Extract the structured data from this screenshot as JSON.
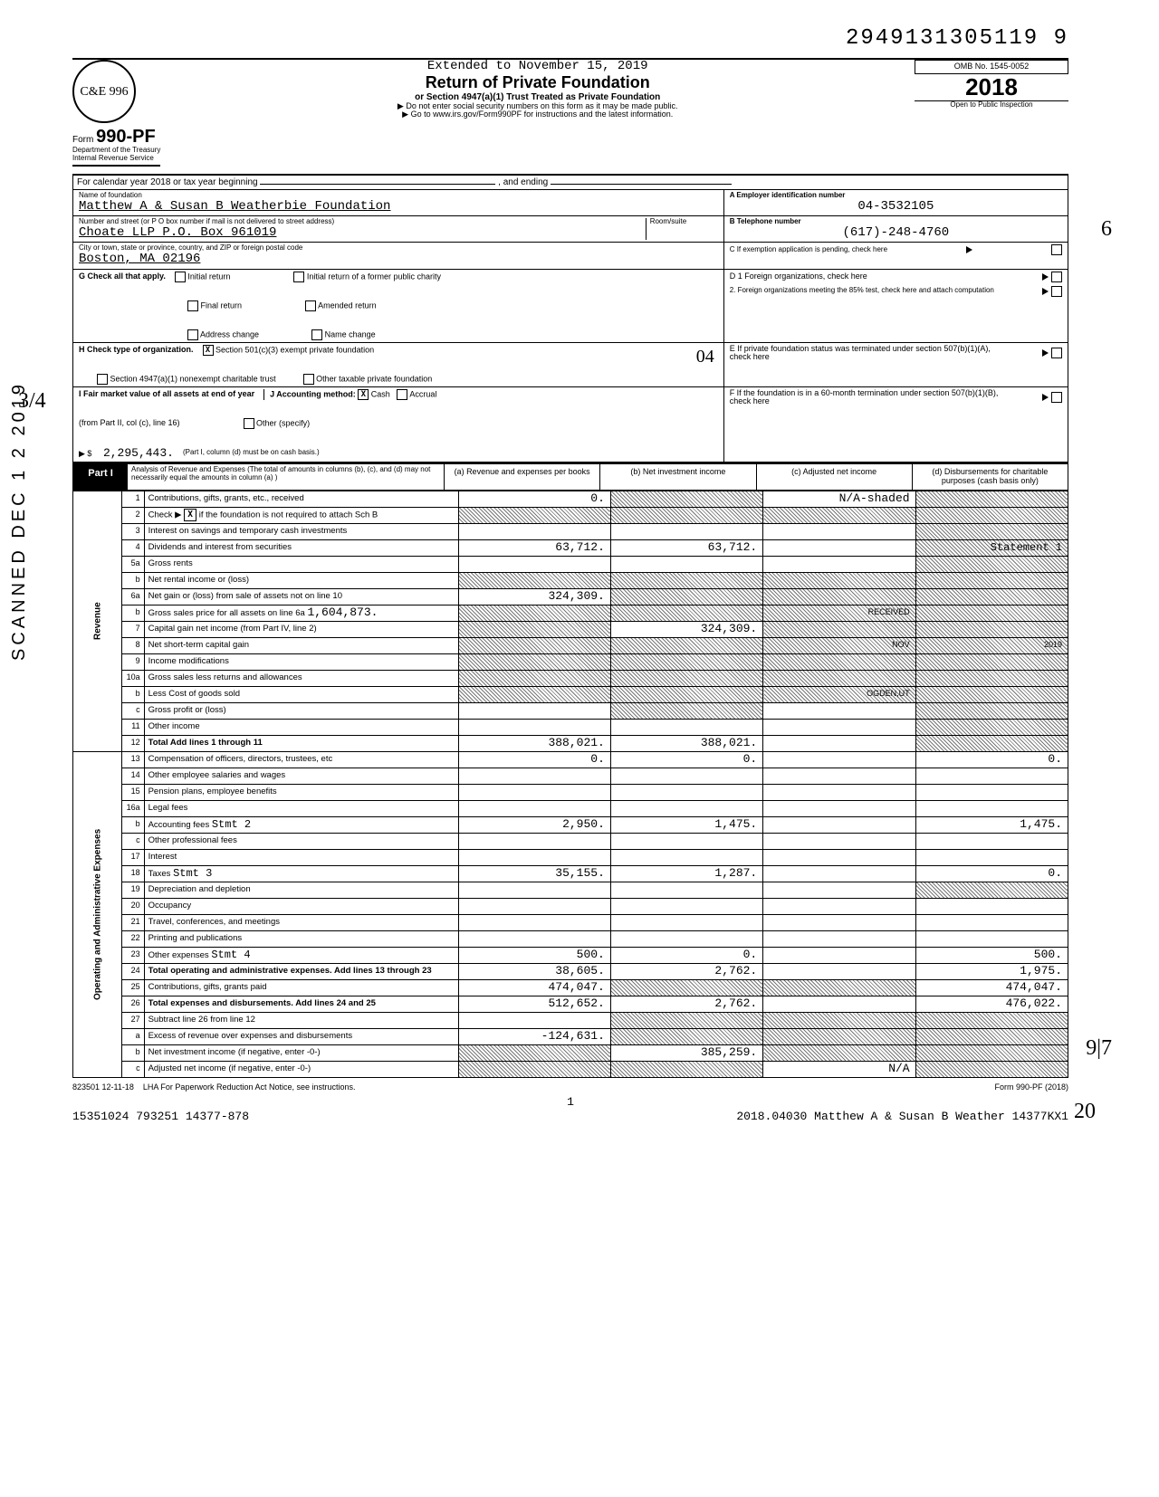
{
  "header": {
    "doc_id": "2949131305119 9",
    "logo_text": "C&E 996",
    "form_prefix": "Form",
    "form_number": "990-PF",
    "treasury1": "Department of the Treasury",
    "treasury2": "Internal Revenue Service",
    "extended": "Extended to November 15, 2019",
    "title": "Return of Private Foundation",
    "sub1": "or Section 4947(a)(1) Trust Treated as Private Foundation",
    "sub2": "▶ Do not enter social security numbers on this form as it may be made public.",
    "sub3": "▶ Go to www.irs.gov/Form990PF for instructions and the latest information.",
    "omb": "OMB No. 1545-0052",
    "year": "2018",
    "inspect": "Open to Public Inspection"
  },
  "cal": {
    "label": "For calendar year 2018 or tax year beginning",
    "ending": ", and ending"
  },
  "foundation": {
    "name_label": "Name of foundation",
    "name": "Matthew A & Susan B Weatherbie Foundation",
    "addr_label": "Number and street (or P O box number if mail is not delivered to street address)",
    "addr": "Choate LLP P.O. Box 961019",
    "room_label": "Room/suite",
    "city_label": "City or town, state or province, country, and ZIP or foreign postal code",
    "city": "Boston, MA  02196",
    "ein_label": "A Employer identification number",
    "ein": "04-3532105",
    "phone_label": "B Telephone number",
    "phone": "(617)-248-4760",
    "c_label": "C If exemption application is pending, check here"
  },
  "checks": {
    "g_label": "G  Check all that apply.",
    "g_opts": [
      "Initial return",
      "Final return",
      "Address change",
      "Initial return of a former public charity",
      "Amended return",
      "Name change"
    ],
    "h_label": "H  Check type of organization.",
    "h_501": "Section 501(c)(3) exempt private foundation",
    "h_4947": "Section 4947(a)(1) nonexempt charitable trust",
    "h_other": "Other taxable private foundation",
    "i_label": "I  Fair market value of all assets at end of year",
    "i_from": "(from Part II, col (c), line 16)",
    "i_amount": "2,295,443.",
    "i_note": "(Part I, column (d) must be on cash basis.)",
    "j_label": "J  Accounting method:",
    "j_cash": "Cash",
    "j_accrual": "Accrual",
    "j_other": "Other (specify)",
    "d1": "D 1  Foreign organizations, check here",
    "d2": "2.  Foreign organizations meeting the 85% test, check here and attach computation",
    "e": "E  If private foundation status was terminated under section 507(b)(1)(A), check here",
    "f": "F  If the foundation is in a 60-month termination under section 507(b)(1)(B), check here",
    "o4": "04"
  },
  "part1": {
    "label": "Part I",
    "desc": "Analysis of Revenue and Expenses (The total of amounts in columns (b), (c), and (d) may not necessarily equal the amounts in column (a) )",
    "cols": [
      "(a) Revenue and expenses per books",
      "(b) Net investment income",
      "(c) Adjusted net income",
      "(d) Disbursements for charitable purposes (cash basis only)"
    ]
  },
  "side_labels": {
    "revenue": "Revenue",
    "op_admin": "Operating and Administrative Expenses"
  },
  "lines": [
    {
      "n": "1",
      "d": "Contributions, gifts, grants, etc., received",
      "a": "0.",
      "b": "shaded",
      "c": "N/A-shaded",
      "dcell": "shaded"
    },
    {
      "n": "2",
      "d": "Check ▶ [X] if the foundation is not required to attach Sch B",
      "a": "shaded",
      "b": "shaded",
      "c": "shaded",
      "dcell": "shaded"
    },
    {
      "n": "3",
      "d": "Interest on savings and temporary cash investments",
      "a": "",
      "b": "",
      "c": "",
      "dcell": "shaded"
    },
    {
      "n": "4",
      "d": "Dividends and interest from securities",
      "a": "63,712.",
      "b": "63,712.",
      "c": "",
      "dcell": "Statement 1"
    },
    {
      "n": "5a",
      "d": "Gross rents",
      "a": "",
      "b": "",
      "c": "",
      "dcell": "shaded"
    },
    {
      "n": "b",
      "d": "Net rental income or (loss)",
      "a": "shaded",
      "b": "shaded",
      "c": "shaded",
      "dcell": "shaded"
    },
    {
      "n": "6a",
      "d": "Net gain or (loss) from sale of assets not on line 10",
      "a": "324,309.",
      "b": "shaded",
      "c": "shaded",
      "dcell": "shaded"
    },
    {
      "n": "b",
      "d": "Gross sales price for all assets on line 6a   1,604,873.",
      "a": "shaded",
      "b": "shaded",
      "c": "shaded-RECEIVED",
      "dcell": "shaded"
    },
    {
      "n": "7",
      "d": "Capital gain net income (from Part IV, line 2)",
      "a": "shaded",
      "b": "324,309.",
      "c": "shaded",
      "dcell": "shaded"
    },
    {
      "n": "8",
      "d": "Net short-term capital gain",
      "a": "shaded",
      "b": "shaded",
      "c": "shaded-NOV",
      "dcell": "shaded-2019"
    },
    {
      "n": "9",
      "d": "Income modifications",
      "a": "shaded",
      "b": "shaded",
      "c": "shaded",
      "dcell": "shaded"
    },
    {
      "n": "10a",
      "d": "Gross sales less returns and allowances",
      "a": "shaded",
      "b": "shaded",
      "c": "shaded",
      "dcell": "shaded"
    },
    {
      "n": "b",
      "d": "Less Cost of goods sold",
      "a": "shaded",
      "b": "shaded",
      "c": "shaded-OGDEN,UT",
      "dcell": "shaded"
    },
    {
      "n": "c",
      "d": "Gross profit or (loss)",
      "a": "",
      "b": "shaded",
      "c": "",
      "dcell": "shaded"
    },
    {
      "n": "11",
      "d": "Other income",
      "a": "",
      "b": "",
      "c": "",
      "dcell": "shaded"
    },
    {
      "n": "12",
      "d": "Total Add lines 1 through 11",
      "a": "388,021.",
      "b": "388,021.",
      "c": "",
      "dcell": "shaded",
      "bold": true
    },
    {
      "n": "13",
      "d": "Compensation of officers, directors, trustees, etc",
      "a": "0.",
      "b": "0.",
      "c": "",
      "dcell": "0."
    },
    {
      "n": "14",
      "d": "Other employee salaries and wages",
      "a": "",
      "b": "",
      "c": "",
      "dcell": ""
    },
    {
      "n": "15",
      "d": "Pension plans, employee benefits",
      "a": "",
      "b": "",
      "c": "",
      "dcell": ""
    },
    {
      "n": "16a",
      "d": "Legal fees",
      "a": "",
      "b": "",
      "c": "",
      "dcell": ""
    },
    {
      "n": "b",
      "d": "Accounting fees           Stmt 2",
      "a": "2,950.",
      "b": "1,475.",
      "c": "",
      "dcell": "1,475."
    },
    {
      "n": "c",
      "d": "Other professional fees",
      "a": "",
      "b": "",
      "c": "",
      "dcell": ""
    },
    {
      "n": "17",
      "d": "Interest",
      "a": "",
      "b": "",
      "c": "",
      "dcell": ""
    },
    {
      "n": "18",
      "d": "Taxes                     Stmt 3",
      "a": "35,155.",
      "b": "1,287.",
      "c": "",
      "dcell": "0."
    },
    {
      "n": "19",
      "d": "Depreciation and depletion",
      "a": "",
      "b": "",
      "c": "",
      "dcell": "shaded"
    },
    {
      "n": "20",
      "d": "Occupancy",
      "a": "",
      "b": "",
      "c": "",
      "dcell": ""
    },
    {
      "n": "21",
      "d": "Travel, conferences, and meetings",
      "a": "",
      "b": "",
      "c": "",
      "dcell": ""
    },
    {
      "n": "22",
      "d": "Printing and publications",
      "a": "",
      "b": "",
      "c": "",
      "dcell": ""
    },
    {
      "n": "23",
      "d": "Other expenses            Stmt 4",
      "a": "500.",
      "b": "0.",
      "c": "",
      "dcell": "500."
    },
    {
      "n": "24",
      "d": "Total operating and administrative expenses. Add lines 13 through 23",
      "a": "38,605.",
      "b": "2,762.",
      "c": "",
      "dcell": "1,975.",
      "bold": true
    },
    {
      "n": "25",
      "d": "Contributions, gifts, grants paid",
      "a": "474,047.",
      "b": "shaded",
      "c": "shaded",
      "dcell": "474,047."
    },
    {
      "n": "26",
      "d": "Total expenses and disbursements. Add lines 24 and 25",
      "a": "512,652.",
      "b": "2,762.",
      "c": "",
      "dcell": "476,022.",
      "bold": true
    },
    {
      "n": "27",
      "d": "Subtract line 26 from line 12",
      "a": "",
      "b": "shaded",
      "c": "shaded",
      "dcell": "shaded"
    },
    {
      "n": "a",
      "d": "Excess of revenue over expenses and disbursements",
      "a": "-124,631.",
      "b": "shaded",
      "c": "shaded",
      "dcell": "shaded"
    },
    {
      "n": "b",
      "d": "Net investment income (if negative, enter -0-)",
      "a": "shaded",
      "b": "385,259.",
      "c": "shaded",
      "dcell": "shaded"
    },
    {
      "n": "c",
      "d": "Adjusted net income (if negative, enter -0-)",
      "a": "shaded",
      "b": "shaded",
      "c": "N/A",
      "dcell": "shaded"
    }
  ],
  "footer": {
    "code": "823501 12-11-18",
    "lha": "LHA  For Paperwork Reduction Act Notice, see instructions.",
    "form": "Form 990-PF (2018)",
    "page": "1",
    "bottom_left": "15351024 793251 14377-878",
    "bottom_right": "2018.04030 Matthew A & Susan B Weather 14377KX1"
  },
  "margins": {
    "scanned": "SCANNED DEC 1 2 2019",
    "frac": "3/4",
    "six": "6",
    "nine": "9|7",
    "twenty": "20"
  },
  "colors": {
    "text": "#000000",
    "bg": "#ffffff",
    "shade": "#999999"
  }
}
